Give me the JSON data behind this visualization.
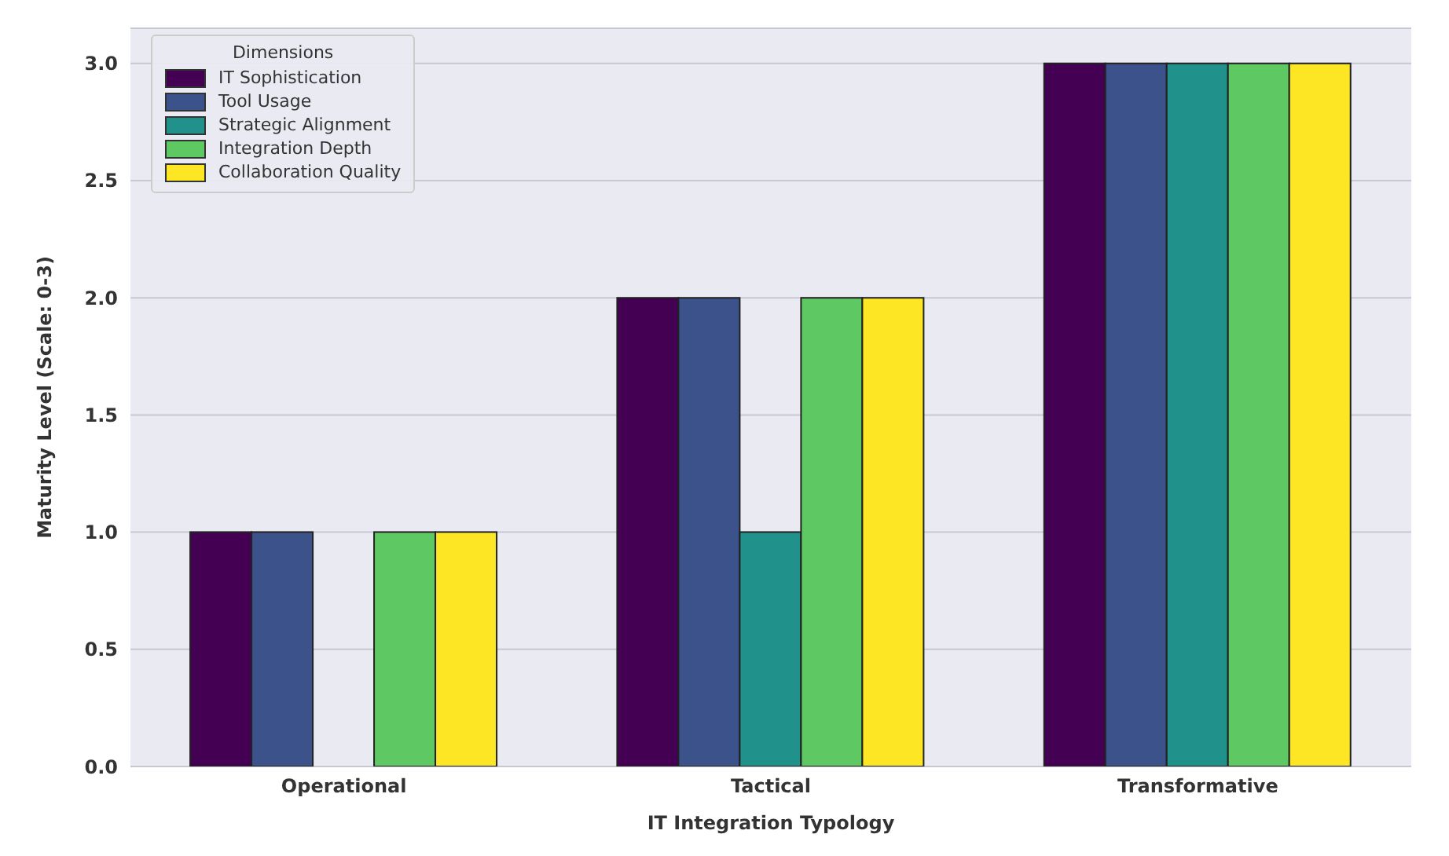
{
  "chart_data": {
    "type": "bar",
    "xlabel": "IT Integration Typology",
    "ylabel": "Maturity Level (Scale: 0-3)",
    "legend_title": "Dimensions",
    "categories": [
      "Operational",
      "Tactical",
      "Transformative"
    ],
    "series": [
      {
        "name": "IT Sophistication",
        "color": "#440154",
        "values": [
          1,
          2,
          3
        ]
      },
      {
        "name": "Tool Usage",
        "color": "#3b528b",
        "values": [
          1,
          2,
          3
        ]
      },
      {
        "name": "Strategic Alignment",
        "color": "#21918c",
        "values": [
          0,
          1,
          3
        ]
      },
      {
        "name": "Integration Depth",
        "color": "#5ec962",
        "values": [
          1,
          2,
          3
        ]
      },
      {
        "name": "Collaboration Quality",
        "color": "#fde725",
        "values": [
          1,
          2,
          3
        ]
      }
    ],
    "ylim": [
      0,
      3.15
    ],
    "yticks": [
      {
        "value": 0,
        "label": "0.0"
      },
      {
        "value": 0.5,
        "label": "0.5"
      },
      {
        "value": 1,
        "label": "1.0"
      },
      {
        "value": 1.5,
        "label": "1.5"
      },
      {
        "value": 2,
        "label": "2.0"
      },
      {
        "value": 2.5,
        "label": "2.5"
      },
      {
        "value": 3,
        "label": "3.0"
      }
    ],
    "grid": "y",
    "legend": "top left"
  }
}
